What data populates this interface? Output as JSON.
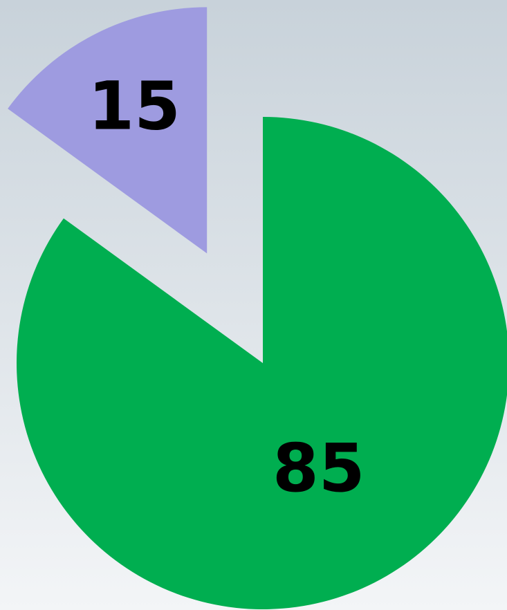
{
  "chart_data": {
    "type": "pie",
    "values": [
      85,
      15
    ],
    "colors": [
      "#00ae50",
      "#9e9be0"
    ]
  }
}
